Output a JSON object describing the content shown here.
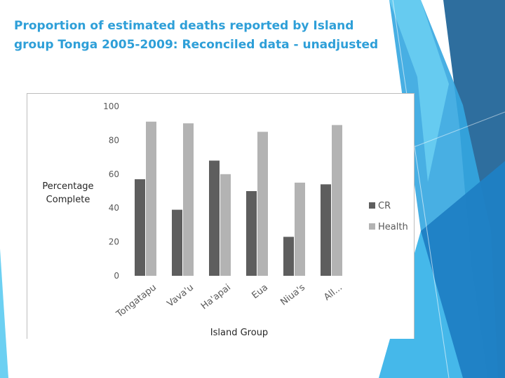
{
  "slide": {
    "title_line1": "Proportion of estimated deaths reported by Island",
    "title_line2": "group Tonga 2005-2009: Reconciled data - unadjusted"
  },
  "colors": {
    "title": "#2e9fd8",
    "cr": "#5e5e5e",
    "health": "#b3b3b3",
    "decor_dark": "#2e6e9e",
    "decor_mid": "#2f8fd0",
    "decor_light": "#5cc8ee"
  },
  "chart_data": {
    "type": "bar",
    "title": "",
    "xlabel": "Island Group",
    "ylabel_line1": "Percentage",
    "ylabel_line2": "Complete",
    "ylim": [
      0,
      100
    ],
    "yticks": [
      "0",
      "20",
      "40",
      "60",
      "80",
      "100"
    ],
    "categories": [
      "Tongatapu",
      "Vava'u",
      "Ha'apai",
      "Eua",
      "Niua's",
      "All..."
    ],
    "series": [
      {
        "name": "CR",
        "values": [
          57,
          39,
          68,
          50,
          23,
          54
        ]
      },
      {
        "name": "Health",
        "values": [
          91,
          90,
          60,
          85,
          55,
          89
        ]
      }
    ],
    "grid": false,
    "legend_position": "right"
  }
}
